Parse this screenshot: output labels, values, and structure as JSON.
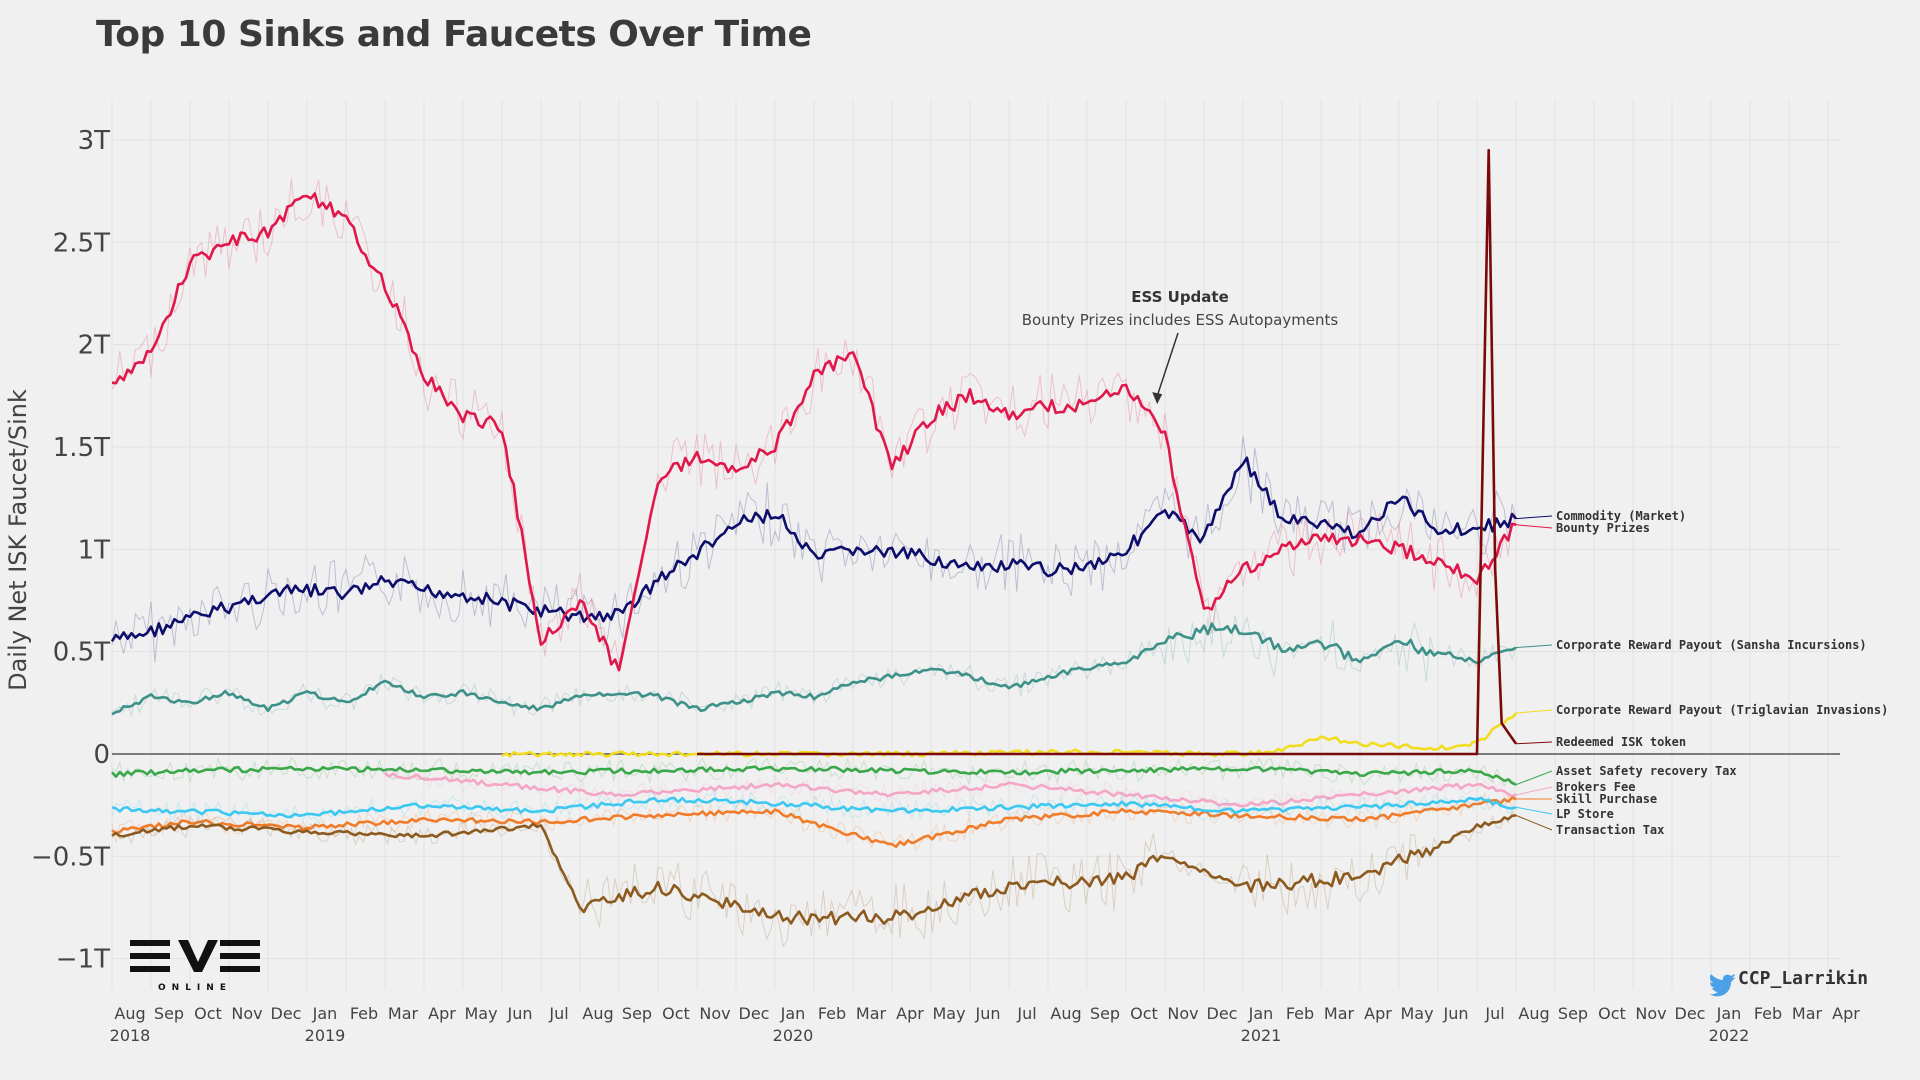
{
  "title": "Top 10 Sinks and Faucets Over Time",
  "credit": "CCP_Larrikin",
  "logo_text": "EVE",
  "logo_subtext": "ONLINE",
  "chart_data": {
    "type": "line",
    "title": "Top 10 Sinks and Faucets Over Time",
    "ylabel": "Daily Net ISK Faucet/Sink",
    "xlabel": "",
    "y_ticks": [
      {
        "v": 3,
        "label": "3T"
      },
      {
        "v": 2.5,
        "label": "2.5T"
      },
      {
        "v": 2,
        "label": "2T"
      },
      {
        "v": 1.5,
        "label": "1.5T"
      },
      {
        "v": 1,
        "label": "1T"
      },
      {
        "v": 0.5,
        "label": "0.5T"
      },
      {
        "v": 0,
        "label": "0"
      },
      {
        "v": -0.5,
        "label": "−0.5T"
      },
      {
        "v": -1,
        "label": "−1T"
      }
    ],
    "ylim": [
      -1.15,
      3.2
    ],
    "x_start": "2018-08",
    "x_end": "2022-04",
    "x_months": [
      "Aug",
      "Sep",
      "Oct",
      "Nov",
      "Dec",
      "Jan",
      "Feb",
      "Mar",
      "Apr",
      "May",
      "Jun",
      "Jul",
      "Aug",
      "Sep",
      "Oct",
      "Nov",
      "Dec",
      "Jan",
      "Feb",
      "Mar",
      "Apr",
      "May",
      "Jun",
      "Jul",
      "Aug",
      "Sep",
      "Oct",
      "Nov",
      "Dec",
      "Jan",
      "Feb",
      "Mar",
      "Apr",
      "May",
      "Jun",
      "Jul",
      "Aug",
      "Sep",
      "Oct",
      "Nov",
      "Dec",
      "Jan",
      "Feb",
      "Mar",
      "Apr"
    ],
    "x_years": [
      {
        "month": "2018-08",
        "label": "2018"
      },
      {
        "month": "2019-01",
        "label": "2019"
      },
      {
        "month": "2020-01",
        "label": "2020"
      },
      {
        "month": "2021-01",
        "label": "2021"
      },
      {
        "month": "2022-01",
        "label": "2022"
      }
    ],
    "grid": true,
    "legend": "direct labels at right end of each series",
    "annotation": {
      "title": "ESS Update",
      "text": "Bounty Prizes includes ESS Autopayments",
      "x": "2020-10-25",
      "y": 1.7
    },
    "series": [
      {
        "name": "Commodity (Market)",
        "color": "#0d0d6b",
        "x": [
          "2018-08",
          "2018-09",
          "2018-10",
          "2018-11",
          "2018-12",
          "2019-01",
          "2019-02",
          "2019-03",
          "2019-04",
          "2019-05",
          "2019-06",
          "2019-07",
          "2019-08",
          "2019-09",
          "2019-10",
          "2019-11",
          "2019-12",
          "2020-01",
          "2020-02",
          "2020-03",
          "2020-04",
          "2020-05",
          "2020-06",
          "2020-07",
          "2020-08",
          "2020-09",
          "2020-10",
          "2020-11",
          "2020-12",
          "2021-01",
          "2021-02",
          "2021-03",
          "2021-04",
          "2021-05",
          "2021-06",
          "2021-07",
          "2021-08"
        ],
        "values": [
          0.55,
          0.6,
          0.66,
          0.72,
          0.78,
          0.8,
          0.78,
          0.84,
          0.8,
          0.78,
          0.74,
          0.7,
          0.67,
          0.68,
          0.85,
          0.98,
          1.12,
          1.18,
          0.95,
          1.0,
          0.98,
          0.96,
          0.9,
          0.92,
          0.9,
          0.92,
          1.0,
          1.18,
          1.05,
          1.45,
          1.15,
          1.12,
          1.08,
          1.25,
          1.1,
          1.1,
          1.15
        ]
      },
      {
        "name": "Bounty Prizes",
        "color": "#e0174a",
        "x": [
          "2018-08",
          "2018-09",
          "2018-10",
          "2018-11",
          "2018-12",
          "2019-01",
          "2019-02",
          "2019-03",
          "2019-04",
          "2019-05",
          "2019-06",
          "2019-07",
          "2019-08",
          "2019-09",
          "2019-10",
          "2019-11",
          "2019-12",
          "2020-01",
          "2020-02",
          "2020-03",
          "2020-04",
          "2020-05",
          "2020-06",
          "2020-07",
          "2020-08",
          "2020-09",
          "2020-10",
          "2020-11",
          "2020-12",
          "2021-01",
          "2021-02",
          "2021-03",
          "2021-04",
          "2021-05",
          "2021-06",
          "2021-07",
          "2021-08"
        ],
        "values": [
          1.8,
          1.95,
          2.4,
          2.5,
          2.55,
          2.75,
          2.6,
          2.3,
          1.85,
          1.65,
          1.6,
          0.55,
          0.75,
          0.4,
          1.35,
          1.45,
          1.4,
          1.5,
          1.85,
          1.95,
          1.4,
          1.65,
          1.75,
          1.65,
          1.7,
          1.7,
          1.8,
          1.55,
          0.7,
          0.9,
          1.0,
          1.05,
          1.05,
          1.0,
          0.95,
          0.85,
          1.12
        ]
      },
      {
        "name": "Corporate Reward Payout (Sansha Incursions)",
        "color": "#3d9188",
        "x": [
          "2018-08",
          "2018-09",
          "2018-10",
          "2018-11",
          "2018-12",
          "2019-01",
          "2019-02",
          "2019-03",
          "2019-04",
          "2019-05",
          "2019-06",
          "2019-07",
          "2019-08",
          "2019-09",
          "2019-10",
          "2019-11",
          "2019-12",
          "2020-01",
          "2020-02",
          "2020-03",
          "2020-04",
          "2020-05",
          "2020-06",
          "2020-07",
          "2020-08",
          "2020-09",
          "2020-10",
          "2020-11",
          "2020-12",
          "2021-01",
          "2021-02",
          "2021-03",
          "2021-04",
          "2021-05",
          "2021-06",
          "2021-07",
          "2021-08"
        ],
        "values": [
          0.2,
          0.28,
          0.25,
          0.3,
          0.22,
          0.3,
          0.25,
          0.35,
          0.28,
          0.3,
          0.25,
          0.22,
          0.28,
          0.3,
          0.28,
          0.22,
          0.25,
          0.3,
          0.28,
          0.35,
          0.38,
          0.42,
          0.38,
          0.32,
          0.38,
          0.42,
          0.45,
          0.55,
          0.6,
          0.62,
          0.5,
          0.55,
          0.45,
          0.55,
          0.5,
          0.45,
          0.52
        ]
      },
      {
        "name": "Corporate Reward Payout (Triglavian Invasions)",
        "color": "#f2dc1f",
        "x": [
          "2019-06",
          "2020-04",
          "2020-09",
          "2021-01",
          "2021-02",
          "2021-03",
          "2021-04",
          "2021-05",
          "2021-06",
          "2021-07",
          "2021-08"
        ],
        "values": [
          0,
          0,
          0.01,
          0,
          0.02,
          0.08,
          0.05,
          0.04,
          0.03,
          0.05,
          0.2
        ]
      },
      {
        "name": "Redeemed ISK token",
        "color": "#7a0a0a",
        "x": [
          "2019-11",
          "2021-06",
          "2021-07",
          "2021-07-10",
          "2021-07-15",
          "2021-07-20",
          "2021-08"
        ],
        "values": [
          0,
          0,
          0,
          2.95,
          0.9,
          0.15,
          0.05
        ]
      },
      {
        "name": "Asset Safety recovery Tax",
        "color": "#3aa84a",
        "x": [
          "2018-08",
          "2018-10",
          "2019-01",
          "2019-04",
          "2019-07",
          "2019-10",
          "2020-01",
          "2020-04",
          "2020-07",
          "2020-10",
          "2021-01",
          "2021-04",
          "2021-07",
          "2021-08"
        ],
        "values": [
          -0.1,
          -0.08,
          -0.07,
          -0.08,
          -0.09,
          -0.08,
          -0.07,
          -0.08,
          -0.09,
          -0.08,
          -0.07,
          -0.1,
          -0.08,
          -0.15
        ]
      },
      {
        "name": "Brokers Fee",
        "color": "#f4a6c6",
        "x": [
          "2019-03",
          "2019-06",
          "2019-09",
          "2020-01",
          "2020-04",
          "2020-07",
          "2020-10",
          "2021-01",
          "2021-04",
          "2021-07",
          "2021-08"
        ],
        "values": [
          -0.1,
          -0.15,
          -0.2,
          -0.15,
          -0.2,
          -0.15,
          -0.2,
          -0.25,
          -0.2,
          -0.15,
          -0.2
        ]
      },
      {
        "name": "Skill Purchase",
        "color": "#f07c2a",
        "x": [
          "2018-08",
          "2018-10",
          "2019-01",
          "2019-04",
          "2019-07",
          "2019-10",
          "2020-01",
          "2020-04",
          "2020-07",
          "2020-10",
          "2021-01",
          "2021-04",
          "2021-07",
          "2021-08"
        ],
        "values": [
          -0.38,
          -0.33,
          -0.36,
          -0.32,
          -0.33,
          -0.3,
          -0.28,
          -0.45,
          -0.32,
          -0.28,
          -0.3,
          -0.32,
          -0.25,
          -0.22
        ]
      },
      {
        "name": "LP Store",
        "color": "#3cc8f0",
        "x": [
          "2018-08",
          "2018-10",
          "2019-01",
          "2019-04",
          "2019-07",
          "2019-10",
          "2020-01",
          "2020-04",
          "2020-07",
          "2020-10",
          "2021-01",
          "2021-04",
          "2021-07",
          "2021-08"
        ],
        "values": [
          -0.27,
          -0.28,
          -0.3,
          -0.25,
          -0.28,
          -0.22,
          -0.24,
          -0.28,
          -0.26,
          -0.24,
          -0.28,
          -0.26,
          -0.22,
          -0.26
        ]
      },
      {
        "name": "Transaction Tax",
        "color": "#8c5a1e",
        "x": [
          "2018-08",
          "2018-10",
          "2019-01",
          "2019-04",
          "2019-07",
          "2019-08",
          "2019-10",
          "2020-01",
          "2020-04",
          "2020-07",
          "2020-10",
          "2020-11",
          "2021-01",
          "2021-04",
          "2021-06",
          "2021-07",
          "2021-08"
        ],
        "values": [
          -0.4,
          -0.35,
          -0.38,
          -0.4,
          -0.35,
          -0.75,
          -0.65,
          -0.8,
          -0.8,
          -0.65,
          -0.6,
          -0.5,
          -0.65,
          -0.6,
          -0.45,
          -0.35,
          -0.3
        ]
      }
    ]
  }
}
